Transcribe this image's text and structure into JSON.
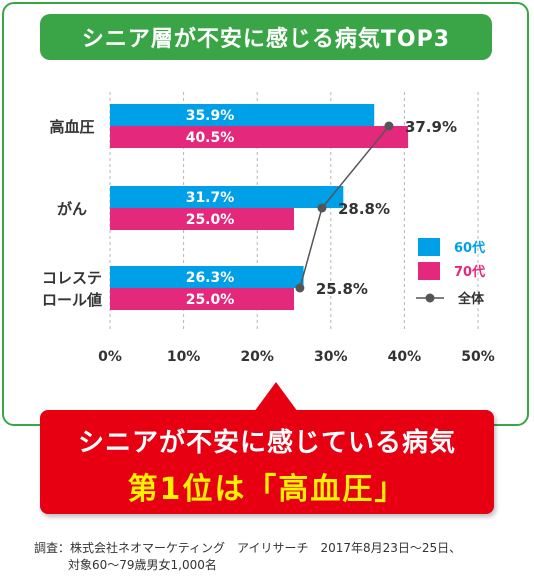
{
  "title": "シニア層が不安に感じる病気TOP3",
  "chart_data": {
    "type": "bar",
    "orientation": "horizontal",
    "categories": [
      "高血圧",
      "がん",
      "コレステロール値"
    ],
    "category_lines": [
      [
        "高血圧"
      ],
      [
        "がん"
      ],
      [
        "コレステ",
        "ロール値"
      ]
    ],
    "series": [
      {
        "name": "60代",
        "values": [
          35.9,
          31.7,
          26.3
        ],
        "color": "#00a0e9"
      },
      {
        "name": "70代",
        "values": [
          40.5,
          25.0,
          25.0
        ],
        "color": "#e4287c"
      }
    ],
    "overall": {
      "name": "全体",
      "type": "line",
      "values": [
        37.9,
        28.8,
        25.8
      ],
      "color": "#555555"
    },
    "value_labels": {
      "60代": [
        "35.9%",
        "31.7%",
        "26.3%"
      ],
      "70代": [
        "40.5%",
        "25.0%",
        "25.0%"
      ],
      "全体": [
        "37.9%",
        "28.8%",
        "25.8%"
      ]
    },
    "xlim": [
      0,
      50
    ],
    "ticks": [
      0,
      10,
      20,
      30,
      40,
      50
    ],
    "tick_labels": [
      "0%",
      "10%",
      "20%",
      "30%",
      "40%",
      "50%"
    ],
    "grid": "vertical dashed",
    "legend_position": "right"
  },
  "callout": {
    "line1": "シニアが不安に感じている病気",
    "line2": "第1位は「高血圧」"
  },
  "source": {
    "line1": "調査：株式会社ネオマーケティング　アイリサーチ　2017年8月23日～25日、",
    "line2": "対象60～79歳男女1,000名"
  },
  "colors": {
    "frame": "#3aa547",
    "callout": "#e60012",
    "callout_highlight": "#fff200"
  }
}
